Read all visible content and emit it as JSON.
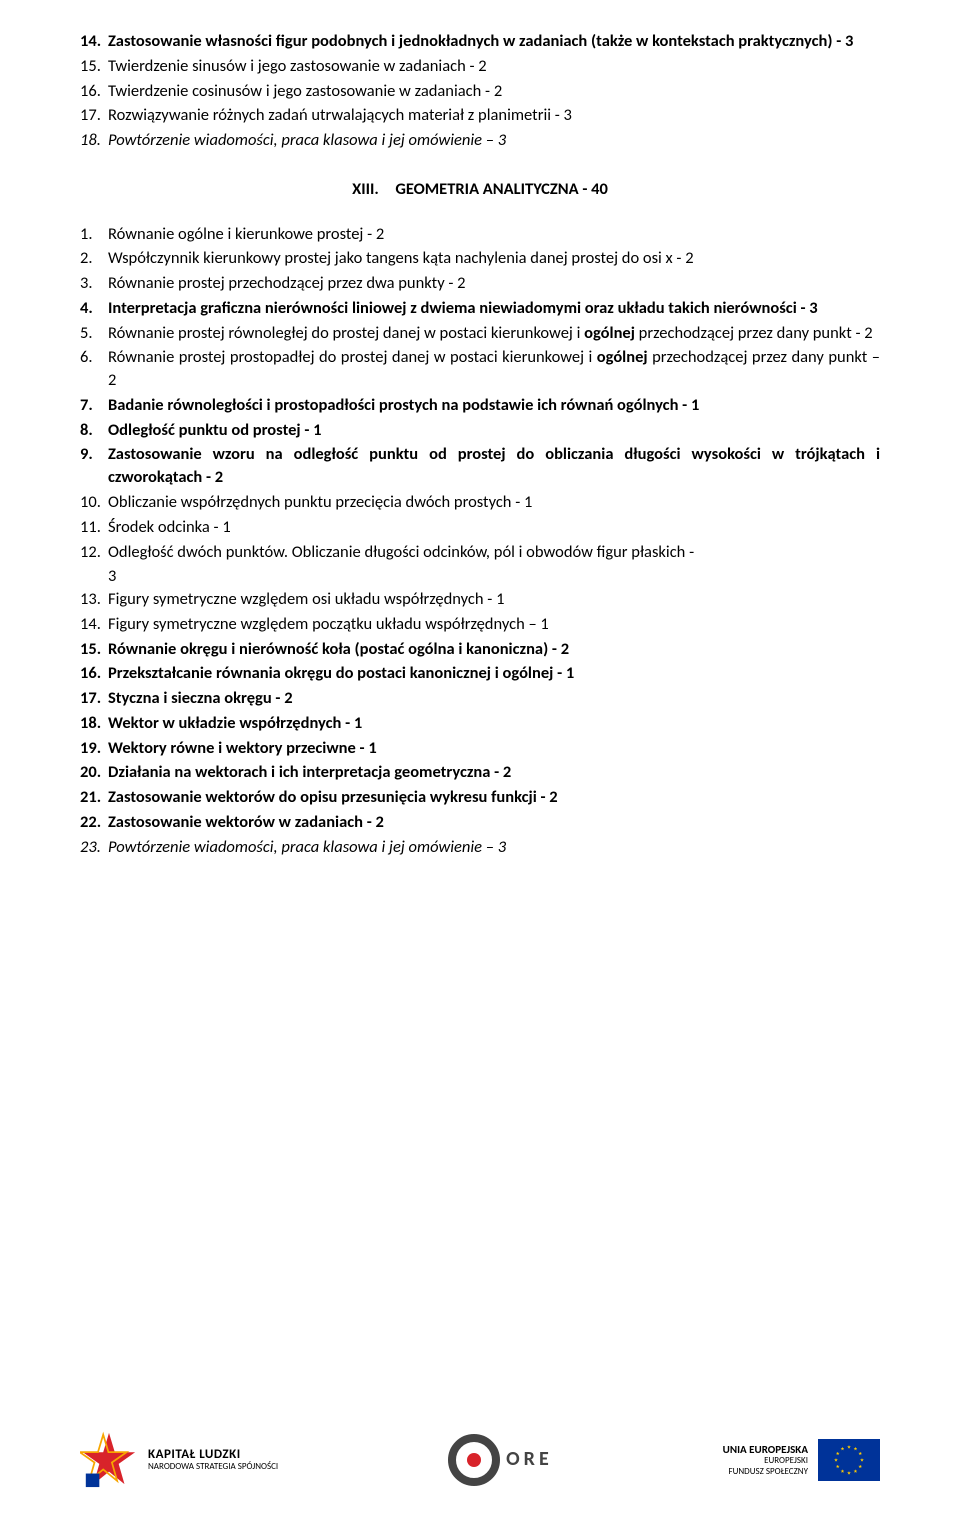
{
  "top_list": [
    {
      "n": "14.",
      "t": "Zastosowanie własności figur podobnych i jednokładnych w zadaniach (także w kontekstach praktycznych) - 3",
      "bold": true
    },
    {
      "n": "15.",
      "t": "Twierdzenie sinusów i jego zastosowanie w zadaniach - 2"
    },
    {
      "n": "16.",
      "t": "Twierdzenie cosinusów i jego zastosowanie w zadaniach - 2"
    },
    {
      "n": "17.",
      "t": "Rozwiązywanie różnych zadań utrwalających materiał z planimetrii - 3"
    },
    {
      "n": "18.",
      "t": "Powtórzenie wiadomości, praca klasowa i jej omówienie – 3",
      "italic": true
    }
  ],
  "section": "XIII. GEOMETRIA ANALITYCZNA - 40",
  "main_list": [
    {
      "n": "1.",
      "t": "Równanie ogólne i kierunkowe prostej - 2"
    },
    {
      "n": "2.",
      "t": "Współczynnik kierunkowy prostej jako tangens kąta nachylenia danej prostej do osi x - 2"
    },
    {
      "n": "3.",
      "t": "Równanie prostej przechodzącej przez dwa punkty - 2"
    },
    {
      "n": "4.",
      "t": "Interpretacja graficzna nierówności liniowej z dwiema niewiadomymi oraz układu takich nierówności - 3",
      "bold": true
    },
    {
      "n": "5.",
      "t": "Równanie prostej równoległej do prostej danej w postaci kierunkowej i <b>ogólnej</b> przechodzącej przez dany punkt - 2"
    },
    {
      "n": "6.",
      "t": "Równanie prostej prostopadłej do prostej danej w postaci kierunkowej i <b>ogólnej</b> przechodzącej przez dany punkt – 2"
    },
    {
      "n": "7.",
      "t": "Badanie równoległości i prostopadłości prostych na podstawie ich równań ogólnych - 1",
      "bold": true
    },
    {
      "n": "8.",
      "t": "Odległość punktu od prostej - 1",
      "bold": true
    },
    {
      "n": "9.",
      "t": "Zastosowanie wzoru na odległość punktu od prostej do obliczania długości wysokości w trójkątach i czworokątach - 2",
      "bold": true
    },
    {
      "n": "10.",
      "t": "Obliczanie współrzędnych punktu przecięcia dwóch prostych - 1"
    },
    {
      "n": "11.",
      "t": "Środek odcinka - 1"
    },
    {
      "n": "12.",
      "t": "Odległość dwóch punktów. Obliczanie długości odcinków, pól i obwodów figur płaskich - 3"
    },
    {
      "n": "13.",
      "t": "Figury symetryczne względem osi układu współrzędnych - 1"
    },
    {
      "n": "14.",
      "t": "Figury symetryczne względem początku układu współrzędnych – 1"
    },
    {
      "n": "15.",
      "t": "Równanie okręgu i nierówność koła (postać ogólna i kanoniczna) - 2",
      "bold": true
    },
    {
      "n": "16.",
      "t": "Przekształcanie  równania okręgu do postaci kanonicznej i ogólnej - 1",
      "bold": true
    },
    {
      "n": "17.",
      "t": "Styczna i sieczna okręgu - 2",
      "bold": true
    },
    {
      "n": "18.",
      "t": "Wektor w układzie współrzędnych - 1",
      "bold": true
    },
    {
      "n": "19.",
      "t": "Wektory równe i wektory przeciwne - 1",
      "bold": true
    },
    {
      "n": "20.",
      "t": "Działania na wektorach i ich interpretacja geometryczna - 2",
      "bold": true
    },
    {
      "n": "21.",
      "t": "Zastosowanie wektorów do opisu przesunięcia wykresu funkcji - 2",
      "bold": true
    },
    {
      "n": "22.",
      "t": "Zastosowanie wektorów w zadaniach - 2",
      "bold": true
    },
    {
      "n": "23.",
      "t": "Powtórzenie wiadomości, praca klasowa i jej omówienie – 3",
      "italic": true
    }
  ],
  "footer": {
    "kl": {
      "line1": "KAPITAŁ LUDZKI",
      "line2": "NARODOWA STRATEGIA SPÓJNOŚCI"
    },
    "ore": "ORE",
    "eu": {
      "line1": "UNIA EUROPEJSKA",
      "line2": "EUROPEJSKI",
      "line3": "FUNDUSZ SPOŁECZNY"
    }
  },
  "colors": {
    "text": "#000000",
    "bg": "#ffffff",
    "eu_blue": "#003399",
    "eu_yellow": "#ffcc00",
    "ore_red": "#d8232a",
    "ore_gray": "#444444"
  }
}
